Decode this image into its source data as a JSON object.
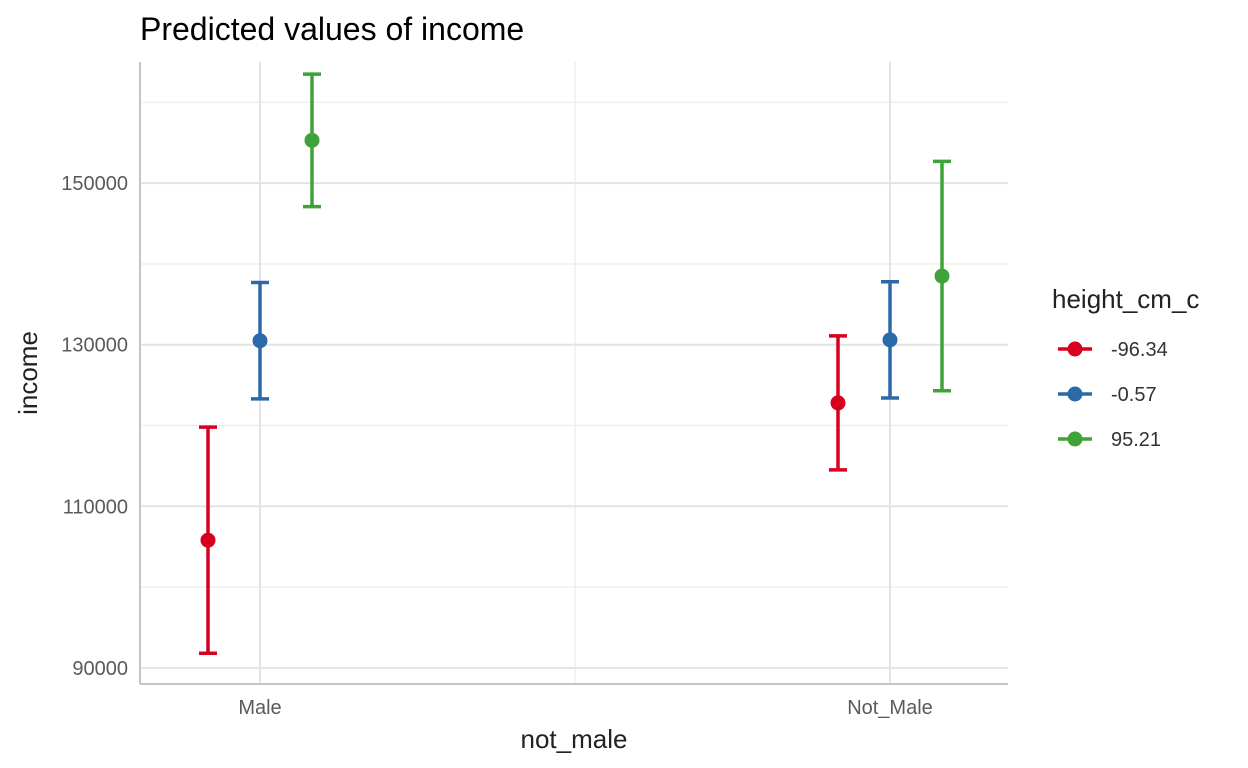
{
  "chart_data": {
    "type": "errorbar",
    "title": "Predicted values of income",
    "xlabel": "not_male",
    "ylabel": "income",
    "categories": [
      "Male",
      "Not_Male"
    ],
    "ylim": [
      88000,
      165000
    ],
    "yticks": [
      90000,
      110000,
      130000,
      150000
    ],
    "ytick_labels": [
      "90000",
      "110000",
      "130000",
      "150000"
    ],
    "grid": true,
    "legend": {
      "title": "height_cm_c",
      "position": "right"
    },
    "series": [
      {
        "name": "-96.34",
        "color": "#d7001f",
        "values": [
          105800,
          122800
        ],
        "lower": [
          91800,
          114500
        ],
        "upper": [
          119800,
          131100
        ]
      },
      {
        "name": "-0.57",
        "color": "#2b6aa8",
        "values": [
          130500,
          130600
        ],
        "lower": [
          123300,
          123400
        ],
        "upper": [
          137700,
          137800
        ]
      },
      {
        "name": "95.21",
        "color": "#3fa33a",
        "values": [
          155300,
          138500
        ],
        "lower": [
          147100,
          124300
        ],
        "upper": [
          163500,
          152700
        ]
      }
    ]
  }
}
